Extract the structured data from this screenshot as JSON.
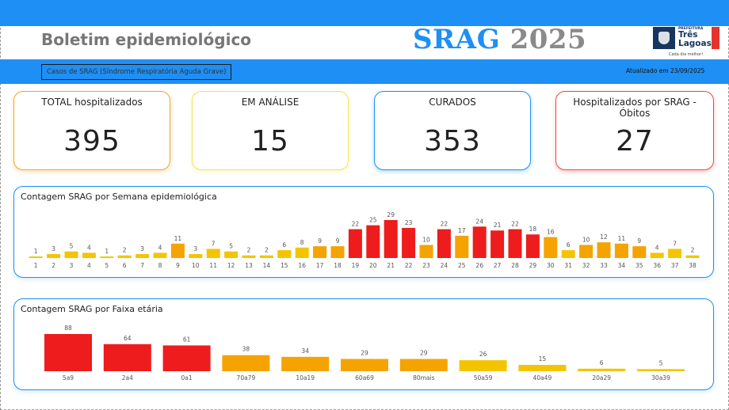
{
  "header": {
    "title": "Boletim epidemiológico",
    "srag_word": "SRAG",
    "year": "2025",
    "logo": {
      "prefeitura": "PREFEITURA",
      "name_line1": "Três",
      "name_line2": "Lagoas",
      "tagline": "Cada dia melhor!"
    }
  },
  "subheader": {
    "subtitle": "Casos de SRAG (Síndrome Respiratória Aguda Grave)",
    "updated": "Atualizado em 23/09/2025"
  },
  "cards": [
    {
      "label": "TOTAL hospitalizados",
      "value": "395",
      "color": "#f5a524"
    },
    {
      "label": "EM ANÁLISE",
      "value": "15",
      "color": "#f5e25a"
    },
    {
      "label": "CURADOS",
      "value": "353",
      "color": "#1e8ff4"
    },
    {
      "label": "Hospitalizados por SRAG - Óbitos",
      "value": "27",
      "color": "#e84a4a"
    }
  ],
  "colors": {
    "accent": "#1e8ff4",
    "bar_low": "#f5c400",
    "bar_mid": "#f5a300",
    "bar_high": "#ee1c1c"
  },
  "chart_data": [
    {
      "type": "bar",
      "title": "Contagem SRAG por Semana epidemiológica",
      "categories": [
        "1",
        "2",
        "3",
        "4",
        "5",
        "6",
        "7",
        "8",
        "9",
        "10",
        "11",
        "12",
        "13",
        "14",
        "15",
        "16",
        "17",
        "18",
        "19",
        "20",
        "21",
        "22",
        "23",
        "24",
        "25",
        "26",
        "27",
        "28",
        "29",
        "30",
        "31",
        "32",
        "33",
        "34",
        "35",
        "36",
        "37",
        "38"
      ],
      "values": [
        1,
        3,
        5,
        4,
        1,
        2,
        3,
        4,
        11,
        3,
        7,
        5,
        2,
        2,
        6,
        8,
        9,
        9,
        22,
        25,
        29,
        23,
        10,
        22,
        17,
        24,
        21,
        22,
        18,
        16,
        6,
        10,
        12,
        11,
        9,
        4,
        7,
        2
      ],
      "ylim": [
        0,
        29
      ],
      "grid": false
    },
    {
      "type": "bar",
      "title": "Contagem SRAG por Faixa etária",
      "categories": [
        "5a9",
        "2a4",
        "0a1",
        "70a79",
        "10a19",
        "60a69",
        "80mais",
        "50a59",
        "40a49",
        "20a29",
        "30a39"
      ],
      "values": [
        88,
        64,
        61,
        38,
        34,
        29,
        29,
        26,
        15,
        6,
        5
      ],
      "ylim": [
        0,
        88
      ],
      "grid": false
    }
  ]
}
